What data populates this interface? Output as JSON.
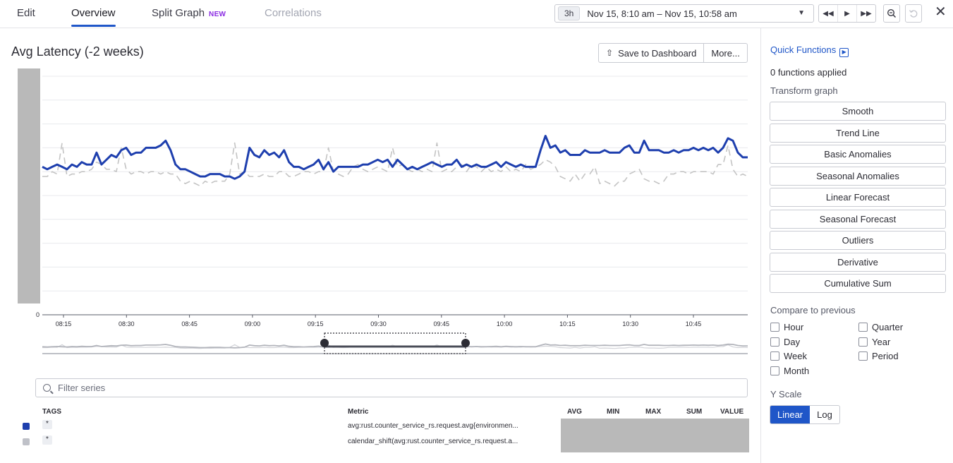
{
  "tabs": [
    {
      "label": "Edit"
    },
    {
      "label": "Overview"
    },
    {
      "label": "Split Graph",
      "badge": "NEW"
    },
    {
      "label": "Correlations"
    }
  ],
  "timepicker": {
    "span": "3h",
    "range": "Nov 15, 8:10 am – Nov 15, 10:58 am"
  },
  "graph": {
    "title": "Avg Latency (-2 weeks)"
  },
  "actions": {
    "save": "Save to Dashboard",
    "more": "More..."
  },
  "chart_data": {
    "type": "line",
    "x_ticks": [
      "08:15",
      "08:30",
      "08:45",
      "09:00",
      "09:15",
      "09:30",
      "09:45",
      "10:00",
      "10:15",
      "10:30",
      "10:45"
    ],
    "y_ticks": [
      "0"
    ],
    "ylim": [
      0,
      10
    ],
    "grid": true,
    "series": [
      {
        "color": "#1e3fae",
        "style": "solid",
        "values": [
          6.2,
          6.1,
          6.2,
          6.3,
          6.2,
          6.1,
          6.3,
          6.2,
          6.4,
          6.3,
          6.3,
          6.8,
          6.3,
          6.5,
          6.7,
          6.6,
          6.9,
          7.0,
          6.7,
          6.8,
          6.8,
          7.0,
          7.0,
          7.0,
          7.1,
          7.3,
          6.9,
          6.3,
          6.1,
          6.1,
          6.0,
          5.9,
          5.8,
          5.8,
          5.9,
          5.9,
          5.9,
          5.8,
          5.8,
          5.7,
          5.8,
          6.0,
          7.0,
          6.7,
          6.6,
          6.9,
          6.7,
          6.8,
          6.6,
          6.9,
          6.4,
          6.2,
          6.2,
          6.1,
          6.2,
          6.3,
          6.5,
          6.1,
          6.4,
          6.0,
          6.2,
          6.2,
          6.2,
          6.2,
          6.2,
          6.3,
          6.3,
          6.4,
          6.5,
          6.4,
          6.5,
          6.2,
          6.5,
          6.3,
          6.1,
          6.2,
          6.1,
          6.2,
          6.3,
          6.4,
          6.3,
          6.2,
          6.3,
          6.3,
          6.5,
          6.2,
          6.3,
          6.2,
          6.3,
          6.2,
          6.2,
          6.3,
          6.4,
          6.2,
          6.4,
          6.3,
          6.2,
          6.3,
          6.2,
          6.2,
          6.2,
          6.9,
          7.5,
          7.0,
          7.1,
          6.8,
          6.9,
          6.7,
          6.7,
          6.7,
          6.9,
          6.8,
          6.8,
          6.8,
          6.9,
          6.8,
          6.8,
          6.8,
          7.0,
          7.1,
          6.8,
          6.8,
          7.3,
          6.9,
          6.9,
          6.9,
          6.8,
          6.8,
          6.9,
          6.8,
          6.9,
          6.9,
          7.0,
          6.9,
          7.0,
          6.9,
          7.0,
          6.8,
          7.0,
          7.4,
          7.3,
          6.8,
          6.6,
          6.6
        ]
      },
      {
        "color": "#c4c4c4",
        "style": "dashed",
        "values": [
          5.8,
          5.8,
          6.0,
          5.9,
          7.2,
          5.8,
          5.9,
          5.9,
          6.0,
          6.0,
          6.1,
          6.4,
          6.3,
          6.1,
          6.1,
          6.0,
          7.0,
          6.1,
          5.9,
          6.0,
          6.0,
          5.9,
          6.0,
          6.0,
          5.9,
          6.0,
          5.9,
          5.9,
          5.6,
          5.5,
          5.6,
          5.5,
          5.4,
          5.6,
          5.5,
          5.6,
          5.6,
          5.6,
          5.9,
          7.2,
          5.9,
          6.0,
          5.8,
          5.8,
          5.8,
          5.9,
          5.8,
          5.8,
          6.0,
          6.0,
          5.8,
          5.8,
          5.9,
          6.0,
          6.0,
          5.9,
          6.0,
          6.0,
          7.0,
          6.0,
          5.9,
          5.8,
          5.9,
          6.2,
          6.3,
          6.1,
          6.0,
          6.1,
          6.2,
          6.1,
          6.0,
          7.0,
          6.2,
          6.3,
          6.1,
          6.0,
          6.1,
          6.0,
          6.1,
          6.0,
          7.2,
          6.0,
          6.1,
          6.0,
          6.2,
          6.3,
          6.0,
          6.3,
          6.2,
          6.0,
          6.2,
          6.0,
          6.1,
          6.0,
          6.2,
          6.0,
          6.1,
          6.0,
          6.3,
          6.1,
          6.2,
          6.3,
          6.5,
          6.4,
          6.2,
          5.8,
          5.7,
          5.6,
          5.9,
          5.6,
          5.9,
          5.9,
          6.2,
          5.5,
          5.6,
          5.5,
          5.4,
          5.6,
          5.6,
          5.9,
          6.0,
          6.1,
          5.7,
          5.6,
          5.6,
          5.5,
          5.6,
          5.9,
          5.9,
          6.0,
          6.0,
          5.9,
          6.0,
          6.0,
          6.0,
          6.0,
          5.9,
          6.3,
          6.3,
          7.1,
          6.1,
          5.8,
          5.9,
          5.8
        ]
      }
    ]
  },
  "filter": {
    "placeholder": "Filter series"
  },
  "table": {
    "headers": {
      "tags": "TAGS",
      "metric": "Metric",
      "avg": "AVG",
      "min": "MIN",
      "max": "MAX",
      "sum": "SUM",
      "value": "VALUE"
    },
    "rows": [
      {
        "color": "#1e3fae",
        "tag": "*",
        "metric": "avg:rust.counter_service_rs.request.avg{environmen..."
      },
      {
        "color": "#bfc1c8",
        "tag": "*",
        "metric": "calendar_shift(avg:rust.counter_service_rs.request.a..."
      }
    ]
  },
  "quick": {
    "title": "Quick Functions",
    "applied": "0 functions applied",
    "transform_label": "Transform graph",
    "functions": [
      "Smooth",
      "Trend Line",
      "Basic Anomalies",
      "Seasonal Anomalies",
      "Linear Forecast",
      "Seasonal Forecast",
      "Outliers",
      "Derivative",
      "Cumulative Sum"
    ],
    "compare_label": "Compare to previous",
    "compare_left": [
      "Hour",
      "Day",
      "Week",
      "Month"
    ],
    "compare_right": [
      "Quarter",
      "Year",
      "Period"
    ],
    "yscale_label": "Y Scale",
    "yscale": {
      "linear": "Linear",
      "log": "Log"
    }
  }
}
